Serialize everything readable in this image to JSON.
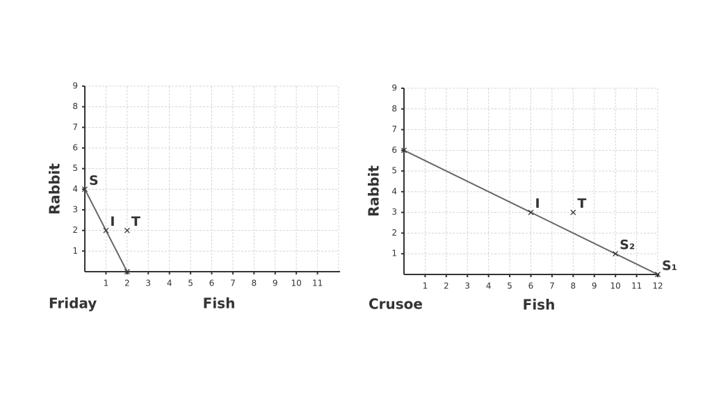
{
  "chart_data": [
    {
      "type": "line",
      "title": "Friday",
      "x_label": "Fish",
      "y_label": "Rabbit",
      "x": [
        0,
        2
      ],
      "values": [
        4,
        0
      ],
      "color": "#666666",
      "points": [
        {
          "label": "S",
          "x": 0,
          "y": 4
        },
        {
          "label": "I",
          "x": 1,
          "y": 2
        },
        {
          "label": "T",
          "x": 2,
          "y": 2
        },
        {
          "x": 2,
          "y": 0
        }
      ],
      "xlim": [
        0,
        12
      ],
      "ylim": [
        0,
        9
      ],
      "xticks": [
        1,
        2,
        3,
        4,
        5,
        6,
        7,
        8,
        9,
        10,
        11
      ],
      "yticks": [
        1,
        2,
        3,
        4,
        5,
        6,
        7,
        8,
        9
      ],
      "grid": true
    },
    {
      "type": "line",
      "title": "Crusoe",
      "x_label": "Fish",
      "y_label": "Rabbit",
      "x": [
        0,
        12
      ],
      "values": [
        6,
        0
      ],
      "color": "#666666",
      "points": [
        {
          "x": 0,
          "y": 6
        },
        {
          "label": "I",
          "x": 6,
          "y": 3
        },
        {
          "label": "T",
          "x": 8,
          "y": 3
        },
        {
          "label": "S₂",
          "x": 10,
          "y": 1
        },
        {
          "label": "S₁",
          "x": 12,
          "y": 0
        }
      ],
      "xlim": [
        0,
        12
      ],
      "ylim": [
        0,
        9
      ],
      "xticks": [
        1,
        2,
        3,
        4,
        5,
        6,
        7,
        8,
        9,
        10,
        11,
        12
      ],
      "yticks": [
        1,
        2,
        3,
        4,
        5,
        6,
        7,
        8,
        9
      ],
      "grid": true
    }
  ]
}
